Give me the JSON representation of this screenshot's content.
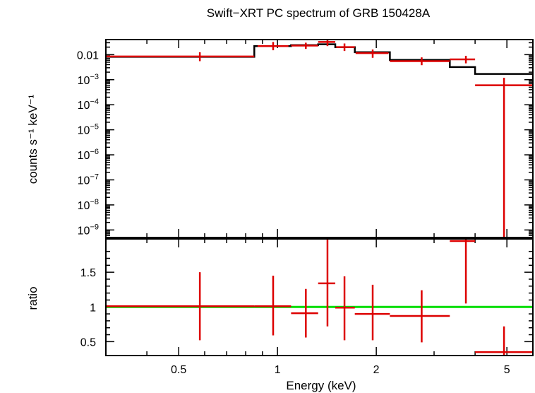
{
  "chart_data": [
    {
      "type": "line",
      "title": "Swift−XRT PC spectrum of GRB 150428A",
      "xlabel": "Energy (keV)",
      "ylabel": "counts s⁻¹ keV⁻¹",
      "x_scale": "log",
      "y_scale": "log",
      "xlim": [
        0.3,
        6.0
      ],
      "ylim": [
        5e-10,
        0.04
      ],
      "x_ticks": [
        {
          "value": 0.5,
          "label": "0.5"
        },
        {
          "value": 1,
          "label": "1"
        },
        {
          "value": 2,
          "label": "2"
        },
        {
          "value": 5,
          "label": "5"
        }
      ],
      "y_ticks": [
        {
          "value": 0.01,
          "base": "0.01",
          "exp": ""
        },
        {
          "value": 0.001,
          "base": "10",
          "exp": "−3"
        },
        {
          "value": 0.0001,
          "base": "10",
          "exp": "−4"
        },
        {
          "value": 1e-05,
          "base": "10",
          "exp": "−5"
        },
        {
          "value": 1e-06,
          "base": "10",
          "exp": "−6"
        },
        {
          "value": 1e-07,
          "base": "10",
          "exp": "−7"
        },
        {
          "value": 1e-08,
          "base": "10",
          "exp": "−8"
        },
        {
          "value": 1e-09,
          "base": "10",
          "exp": "−9"
        }
      ],
      "data_points": [
        {
          "x": 0.58,
          "xlo": 0.3,
          "xhi": 0.85,
          "y": 0.0085,
          "ylo": 0.0055,
          "yhi": 0.0125
        },
        {
          "x": 0.97,
          "xlo": 0.87,
          "xhi": 1.08,
          "y": 0.022,
          "ylo": 0.015,
          "yhi": 0.032
        },
        {
          "x": 1.22,
          "xlo": 1.1,
          "xhi": 1.33,
          "y": 0.023,
          "ylo": 0.017,
          "yhi": 0.03
        },
        {
          "x": 1.42,
          "xlo": 1.33,
          "xhi": 1.5,
          "y": 0.032,
          "ylo": 0.022,
          "yhi": 0.04
        },
        {
          "x": 1.6,
          "xlo": 1.51,
          "xhi": 1.72,
          "y": 0.02,
          "ylo": 0.014,
          "yhi": 0.028
        },
        {
          "x": 1.95,
          "xlo": 1.73,
          "xhi": 2.18,
          "y": 0.0115,
          "ylo": 0.0075,
          "yhi": 0.016
        },
        {
          "x": 2.75,
          "xlo": 2.2,
          "xhi": 3.35,
          "y": 0.0055,
          "ylo": 0.0038,
          "yhi": 0.0078
        },
        {
          "x": 3.75,
          "xlo": 3.35,
          "xhi": 4.0,
          "y": 0.0065,
          "ylo": 0.0045,
          "yhi": 0.009
        },
        {
          "x": 4.9,
          "xlo": 4.0,
          "xhi": 6.0,
          "y": 0.0006,
          "ylo": 5e-10,
          "yhi": 0.0012
        }
      ],
      "model": [
        {
          "xlo": 0.3,
          "xhi": 0.85,
          "y": 0.0082
        },
        {
          "xlo": 0.85,
          "xhi": 1.1,
          "y": 0.022
        },
        {
          "xlo": 1.1,
          "xhi": 1.33,
          "y": 0.024
        },
        {
          "xlo": 1.33,
          "xhi": 1.5,
          "y": 0.026
        },
        {
          "xlo": 1.5,
          "xhi": 1.72,
          "y": 0.02
        },
        {
          "xlo": 1.72,
          "xhi": 2.2,
          "y": 0.0125
        },
        {
          "xlo": 2.2,
          "xhi": 3.35,
          "y": 0.0062
        },
        {
          "xlo": 3.35,
          "xhi": 4.0,
          "y": 0.0032
        },
        {
          "xlo": 4.0,
          "xhi": 6.0,
          "y": 0.0017
        }
      ],
      "colors": {
        "data": "#dd0000",
        "model": "#000000"
      }
    },
    {
      "type": "scatter",
      "xlabel": "Energy (keV)",
      "ylabel": "ratio",
      "x_scale": "log",
      "y_scale": "linear",
      "xlim": [
        0.3,
        6.0
      ],
      "ylim": [
        0.3,
        1.98
      ],
      "x_ticks": [
        {
          "value": 0.5,
          "label": "0.5"
        },
        {
          "value": 1,
          "label": "1"
        },
        {
          "value": 2,
          "label": "2"
        },
        {
          "value": 5,
          "label": "5"
        }
      ],
      "y_ticks": [
        {
          "value": 0.5,
          "label": "0.5"
        },
        {
          "value": 1,
          "label": "1"
        },
        {
          "value": 1.5,
          "label": "1.5"
        }
      ],
      "reference_line": 1,
      "data_points": [
        {
          "x": 0.58,
          "xlo": 0.3,
          "xhi": 0.85,
          "y": 1.01,
          "ylo": 0.52,
          "yhi": 1.5
        },
        {
          "x": 0.97,
          "xlo": 0.85,
          "xhi": 1.1,
          "y": 1.01,
          "ylo": 0.59,
          "yhi": 1.45
        },
        {
          "x": 1.22,
          "xlo": 1.1,
          "xhi": 1.33,
          "y": 0.91,
          "ylo": 0.56,
          "yhi": 1.26
        },
        {
          "x": 1.42,
          "xlo": 1.33,
          "xhi": 1.5,
          "y": 1.34,
          "ylo": 0.72,
          "yhi": 1.98
        },
        {
          "x": 1.6,
          "xlo": 1.5,
          "xhi": 1.72,
          "y": 0.99,
          "ylo": 0.52,
          "yhi": 1.44
        },
        {
          "x": 1.95,
          "xlo": 1.72,
          "xhi": 2.2,
          "y": 0.9,
          "ylo": 0.52,
          "yhi": 1.32
        },
        {
          "x": 2.75,
          "xlo": 2.2,
          "xhi": 3.35,
          "y": 0.87,
          "ylo": 0.49,
          "yhi": 1.24
        },
        {
          "x": 3.75,
          "xlo": 3.35,
          "xhi": 4.0,
          "y": 1.95,
          "ylo": 1.05,
          "yhi": 1.98
        },
        {
          "x": 4.9,
          "xlo": 4.0,
          "xhi": 6.0,
          "y": 0.35,
          "ylo": 0.3,
          "yhi": 0.72
        }
      ],
      "colors": {
        "data": "#dd0000",
        "reference_line": "#00dd00"
      }
    }
  ]
}
